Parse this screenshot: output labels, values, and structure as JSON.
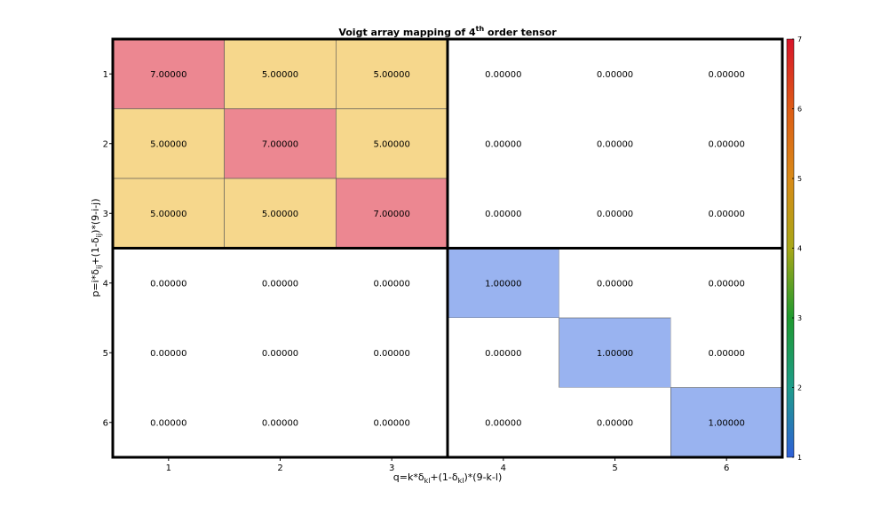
{
  "chart_data": {
    "type": "heatmap",
    "title": {
      "prefix": "Voigt array mapping of 4",
      "superscript": "th",
      "suffix": " order tensor"
    },
    "xlabel": {
      "main": "q=k*δ",
      "sub1": "kl",
      "mid": "+(1-δ",
      "sub2": "kl",
      "end": ")*(9-k-l)"
    },
    "ylabel": {
      "main": "p=i*δ",
      "sub1": "ij",
      "mid": "+(1-δ",
      "sub2": "ij",
      "end": ")*(9-i-j)"
    },
    "x_ticks": [
      "1",
      "2",
      "3",
      "4",
      "5",
      "6"
    ],
    "y_ticks": [
      "1",
      "2",
      "3",
      "4",
      "5",
      "6"
    ],
    "values": [
      [
        7,
        5,
        5,
        0,
        0,
        0
      ],
      [
        5,
        7,
        5,
        0,
        0,
        0
      ],
      [
        5,
        5,
        7,
        0,
        0,
        0
      ],
      [
        0,
        0,
        0,
        1,
        0,
        0
      ],
      [
        0,
        0,
        0,
        0,
        1,
        0
      ],
      [
        0,
        0,
        0,
        0,
        0,
        1
      ]
    ],
    "labels": [
      [
        "7.00000",
        "5.00000",
        "5.00000",
        "0.00000",
        "0.00000",
        "0.00000"
      ],
      [
        "5.00000",
        "7.00000",
        "5.00000",
        "0.00000",
        "0.00000",
        "0.00000"
      ],
      [
        "5.00000",
        "5.00000",
        "7.00000",
        "0.00000",
        "0.00000",
        "0.00000"
      ],
      [
        "0.00000",
        "0.00000",
        "0.00000",
        "1.00000",
        "0.00000",
        "0.00000"
      ],
      [
        "0.00000",
        "0.00000",
        "0.00000",
        "0.00000",
        "1.00000",
        "0.00000"
      ],
      [
        "0.00000",
        "0.00000",
        "0.00000",
        "0.00000",
        "0.00000",
        "1.00000"
      ]
    ],
    "zero_color": "#ffffff",
    "value_colors": {
      "1": "#99b3f0",
      "5": "#f6d78c",
      "7": "#ec8791"
    },
    "colorbar": {
      "range": [
        1,
        7
      ],
      "ticks": [
        "1",
        "2",
        "3",
        "4",
        "5",
        "6",
        "7"
      ],
      "stops": [
        "#2f5fd8",
        "#1e9c8a",
        "#1f9a2f",
        "#a7a718",
        "#d88a18",
        "#dc5c16",
        "#d8142a"
      ]
    },
    "block_divisions": {
      "rows": [
        3
      ],
      "cols": [
        3
      ]
    }
  }
}
